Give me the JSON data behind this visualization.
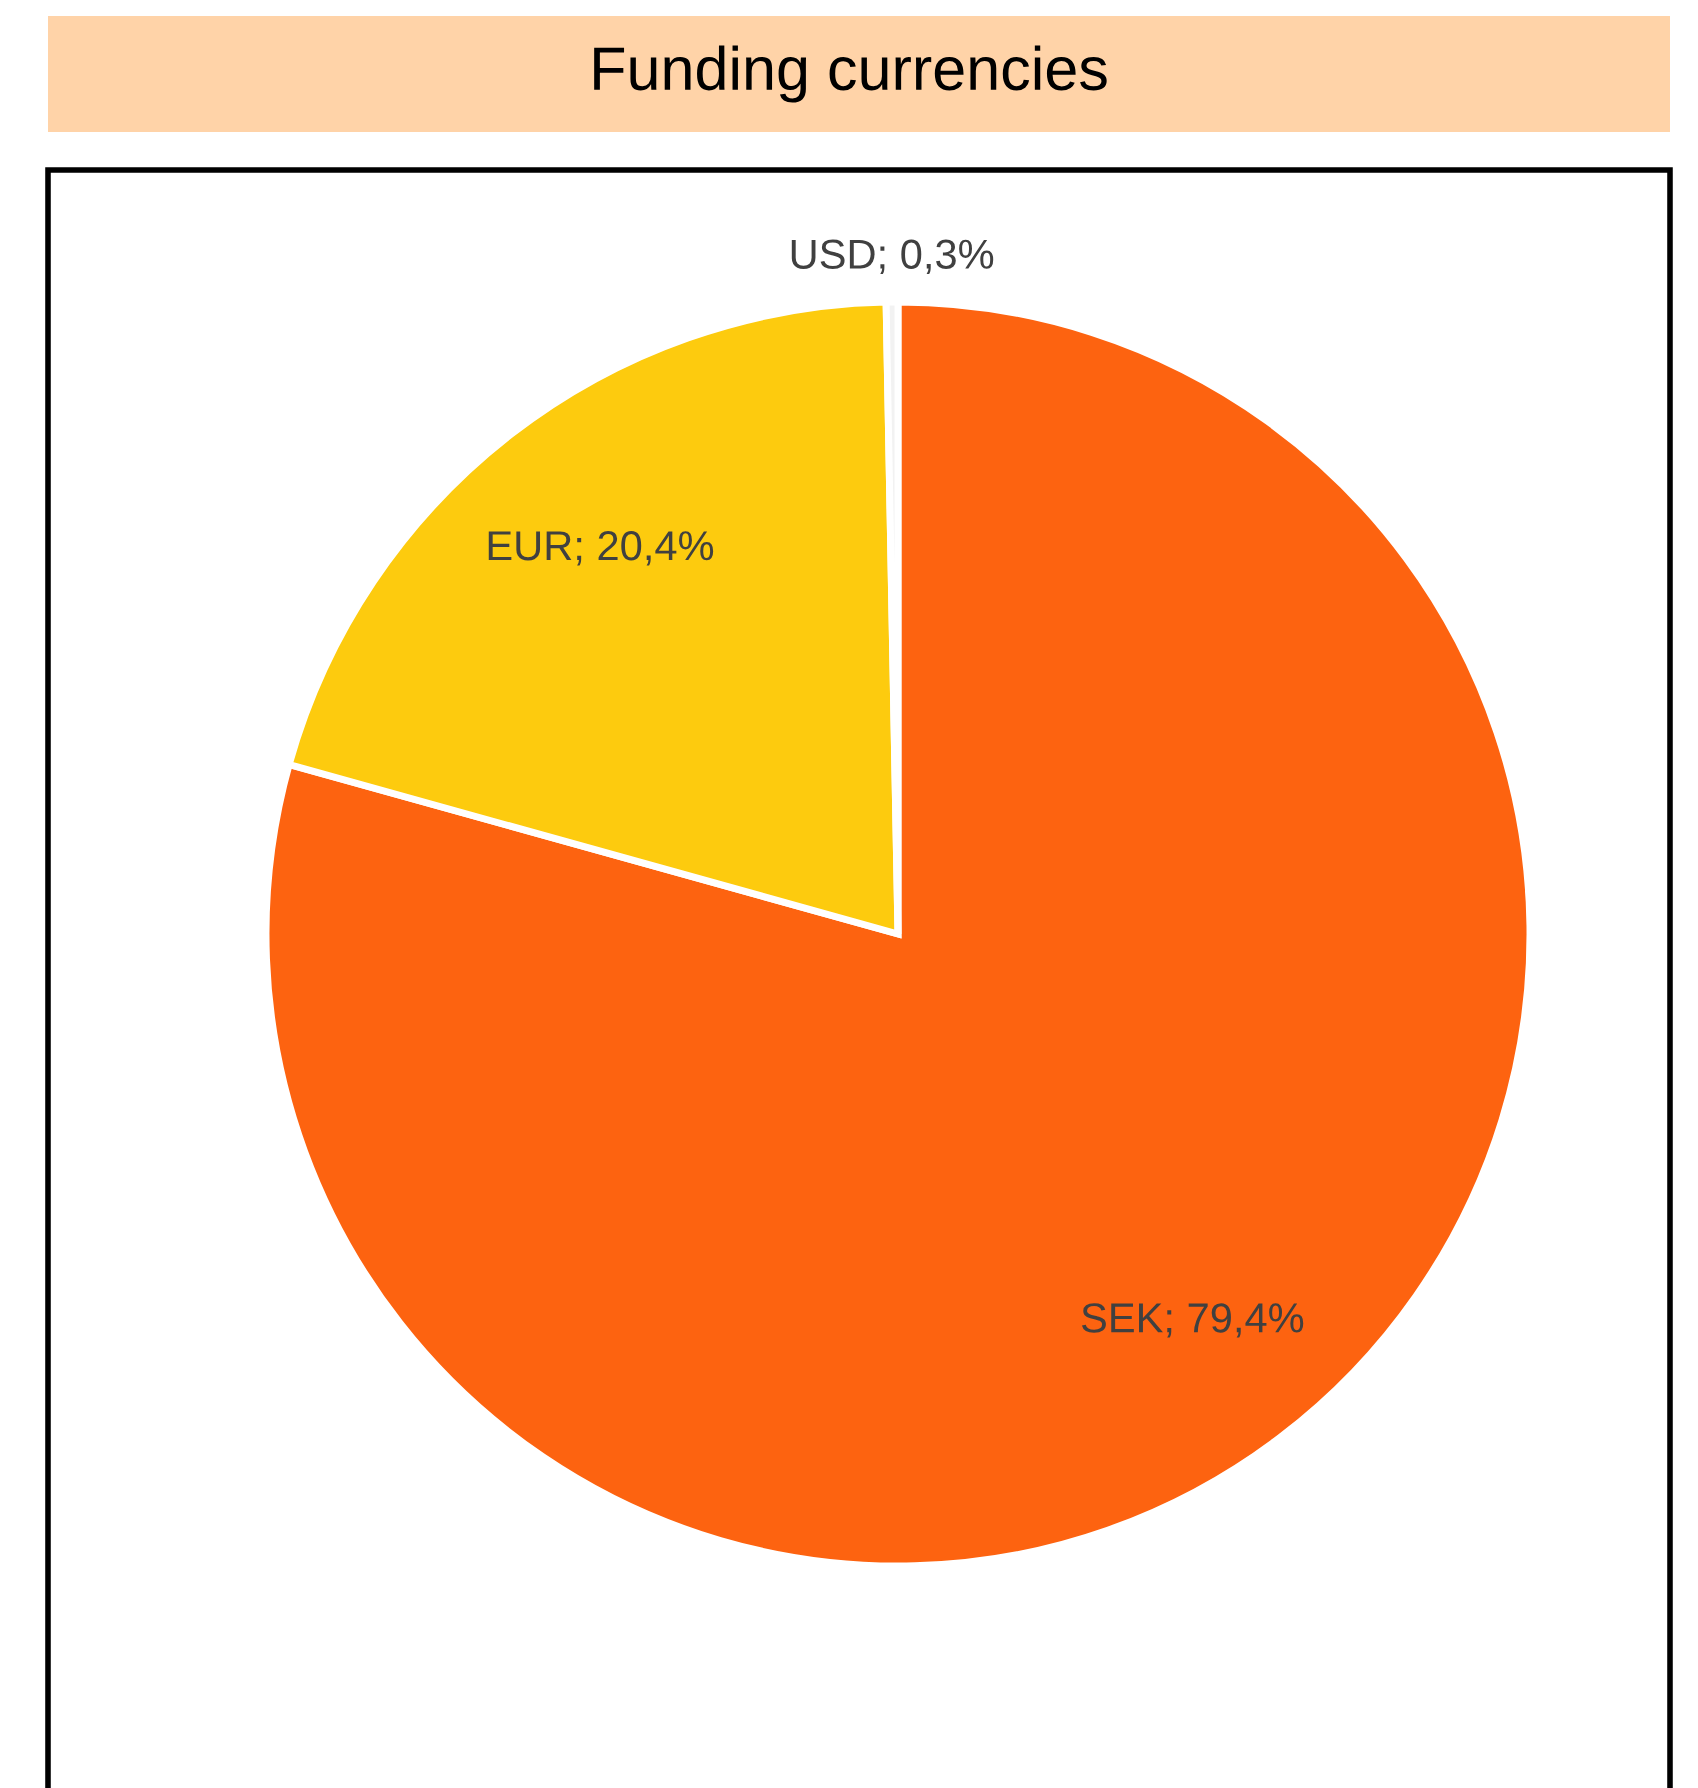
{
  "chart_data": {
    "type": "pie",
    "title": "Funding currencies",
    "categories": [
      "SEK",
      "EUR",
      "USD"
    ],
    "values": [
      79.4,
      20.4,
      0.3
    ],
    "colors": [
      "#fd6310",
      "#fdcb0e",
      "#f2f2f2"
    ],
    "value_labels": [
      "79,4%",
      "20,4%",
      "0,3%"
    ],
    "legend": false
  }
}
